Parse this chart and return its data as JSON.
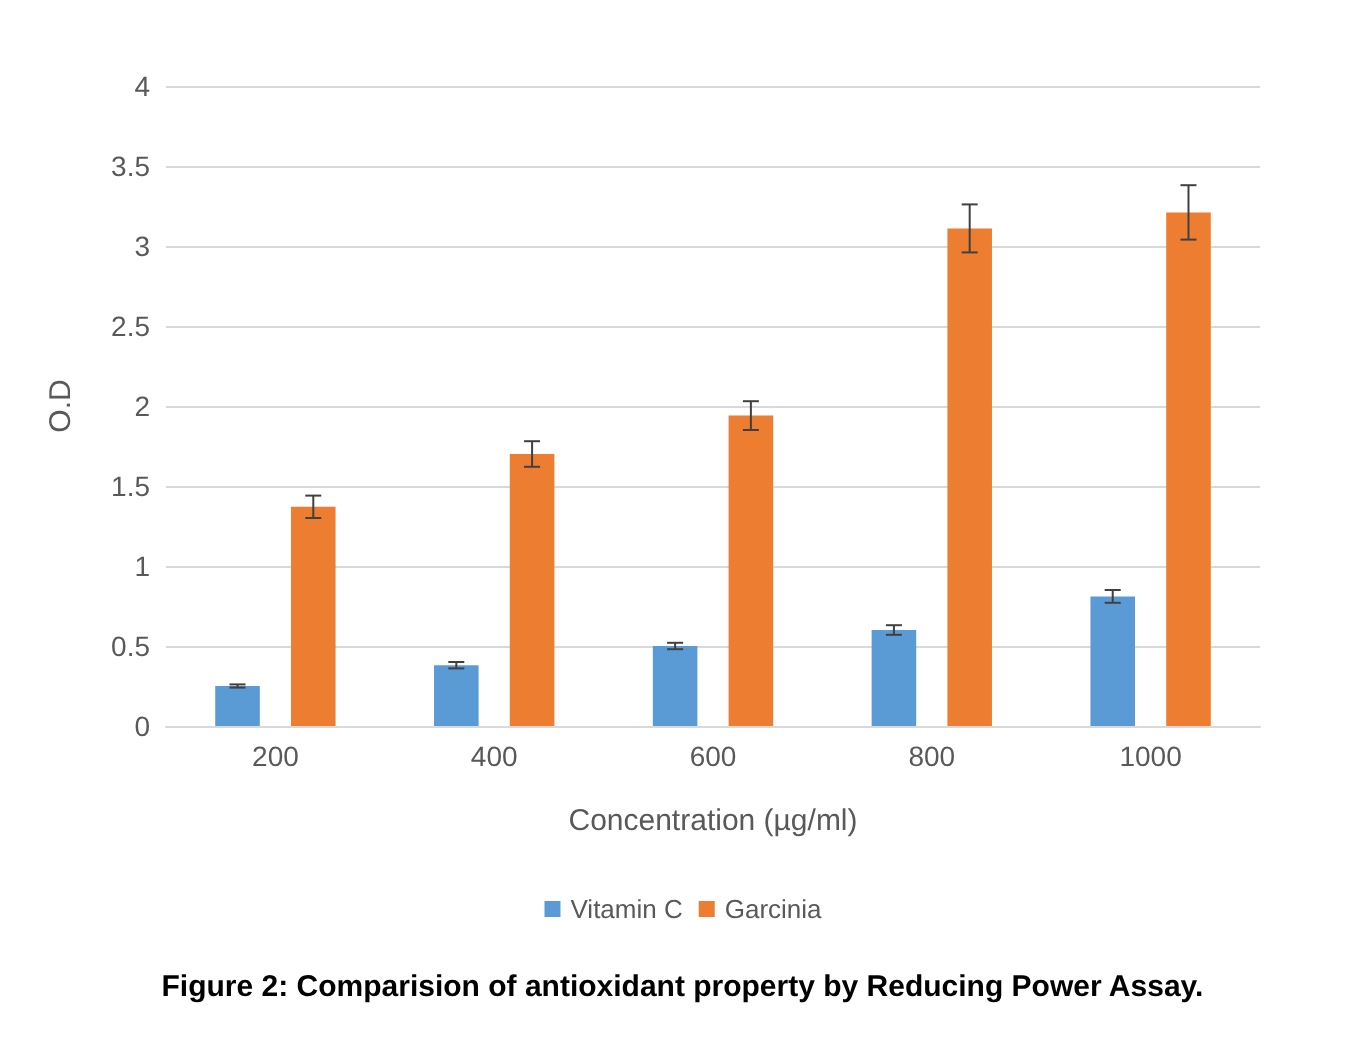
{
  "chart_data": {
    "type": "bar",
    "xlabel": "Concentration (µg/ml)",
    "ylabel": "O.D",
    "categories": [
      "200",
      "400",
      "600",
      "800",
      "1000"
    ],
    "series": [
      {
        "name": "Vitamin C",
        "color": "#5b9bd5",
        "values": [
          0.25,
          0.38,
          0.5,
          0.6,
          0.81
        ],
        "errors": [
          0.01,
          0.02,
          0.02,
          0.03,
          0.04
        ]
      },
      {
        "name": "Garcinia",
        "color": "#ed7d31",
        "values": [
          1.37,
          1.7,
          1.94,
          3.11,
          3.21
        ],
        "errors": [
          0.07,
          0.08,
          0.09,
          0.15,
          0.17
        ]
      }
    ],
    "ylim": [
      0,
      4
    ],
    "yticks": [
      0,
      0.5,
      1,
      1.5,
      2,
      2.5,
      3,
      3.5,
      4
    ],
    "grid": "y",
    "legend": "bottom",
    "annotations": [
      "Figure 2: Comparision of antioxidant property by Reducing Power Assay."
    ]
  }
}
